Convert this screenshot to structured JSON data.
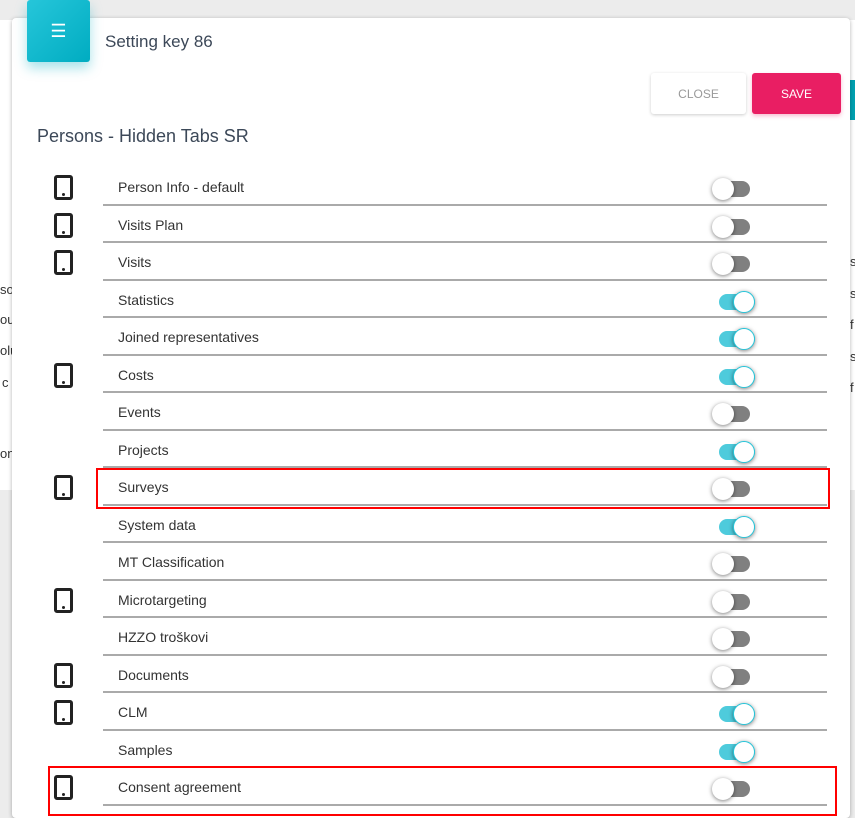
{
  "background_fragments": {
    "left": [
      "so",
      "ou",
      "olu",
      "c",
      "on"
    ],
    "right": [
      "s",
      "s",
      "f",
      "s",
      "f"
    ]
  },
  "dialog": {
    "title": "Setting key 86",
    "header_icon": "list-icon",
    "close_label": "CLOSE",
    "save_label": "SAVE",
    "subtitle": "Persons - Hidden Tabs SR",
    "accent_color": "#00acc1",
    "save_color": "#e91e63",
    "rows": [
      {
        "label": "Person Info - default",
        "mobile": true,
        "enabled": false
      },
      {
        "label": "Visits Plan",
        "mobile": true,
        "enabled": false
      },
      {
        "label": "Visits",
        "mobile": true,
        "enabled": false
      },
      {
        "label": "Statistics",
        "mobile": false,
        "enabled": true
      },
      {
        "label": "Joined representatives",
        "mobile": false,
        "enabled": true
      },
      {
        "label": "Costs",
        "mobile": true,
        "enabled": true
      },
      {
        "label": "Events",
        "mobile": false,
        "enabled": false
      },
      {
        "label": "Projects",
        "mobile": false,
        "enabled": true
      },
      {
        "label": "Surveys",
        "mobile": true,
        "enabled": false,
        "highlighted": true
      },
      {
        "label": "System data",
        "mobile": false,
        "enabled": true
      },
      {
        "label": "MT Classification",
        "mobile": false,
        "enabled": false
      },
      {
        "label": "Microtargeting",
        "mobile": true,
        "enabled": false
      },
      {
        "label": "HZZO troškovi",
        "mobile": false,
        "enabled": false
      },
      {
        "label": "Documents",
        "mobile": true,
        "enabled": false
      },
      {
        "label": "CLM",
        "mobile": true,
        "enabled": true
      },
      {
        "label": "Samples",
        "mobile": false,
        "enabled": true
      },
      {
        "label": "Consent agreement",
        "mobile": true,
        "enabled": false,
        "highlighted": true
      }
    ]
  }
}
